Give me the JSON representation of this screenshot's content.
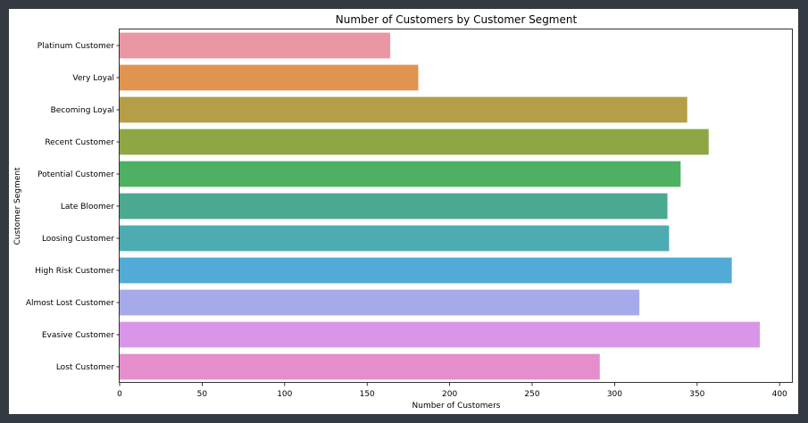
{
  "chart_data": {
    "type": "bar",
    "orientation": "horizontal",
    "title": "Number of Customers by Customer Segment",
    "xlabel": "Number of Customers",
    "ylabel": "Customer Segment",
    "xlim": [
      0,
      408
    ],
    "xticks": [
      0,
      50,
      100,
      150,
      200,
      250,
      300,
      350,
      400
    ],
    "grid": false,
    "categories": [
      "Platinum Customer",
      "Very Loyal",
      "Becoming Loyal",
      "Recent Customer",
      "Potential Customer",
      "Late Bloomer",
      "Loosing Customer",
      "High Risk Customer",
      "Almost Lost Customer",
      "Evasive Customer",
      "Lost Customer"
    ],
    "values": [
      164,
      181,
      344,
      357,
      340,
      332,
      333,
      371,
      315,
      388,
      291
    ],
    "colors": [
      "#ea96a3",
      "#e1944f",
      "#b49e47",
      "#8fa645",
      "#4eb062",
      "#4aa990",
      "#4dacb2",
      "#52abd6",
      "#a7aae9",
      "#d996e8",
      "#e68ecb"
    ]
  }
}
